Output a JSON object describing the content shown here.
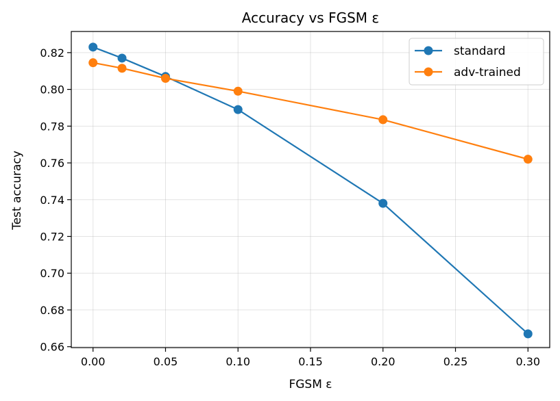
{
  "chart_data": {
    "type": "line",
    "title": "Accuracy vs FGSM ε",
    "xlabel": "FGSM ε",
    "ylabel": "Test accuracy",
    "x": [
      0.0,
      0.02,
      0.05,
      0.1,
      0.2,
      0.3
    ],
    "xlim": [
      -0.015,
      0.315
    ],
    "ylim": [
      0.6595,
      0.8315
    ],
    "xticks": [
      0.0,
      0.05,
      0.1,
      0.15,
      0.2,
      0.25,
      0.3
    ],
    "xtick_labels": [
      "0.00",
      "0.05",
      "0.10",
      "0.15",
      "0.20",
      "0.25",
      "0.30"
    ],
    "yticks": [
      0.66,
      0.68,
      0.7,
      0.72,
      0.74,
      0.76,
      0.78,
      0.8,
      0.82
    ],
    "ytick_labels": [
      "0.66",
      "0.68",
      "0.70",
      "0.72",
      "0.74",
      "0.76",
      "0.78",
      "0.80",
      "0.82"
    ],
    "grid": true,
    "legend_position": "top-right",
    "series": [
      {
        "name": "standard",
        "color": "#1f77b4",
        "values": [
          0.823,
          0.817,
          0.807,
          0.789,
          0.738,
          0.667
        ]
      },
      {
        "name": "adv-trained",
        "color": "#ff7f0e",
        "values": [
          0.8145,
          0.8115,
          0.806,
          0.799,
          0.7835,
          0.762
        ]
      }
    ]
  }
}
